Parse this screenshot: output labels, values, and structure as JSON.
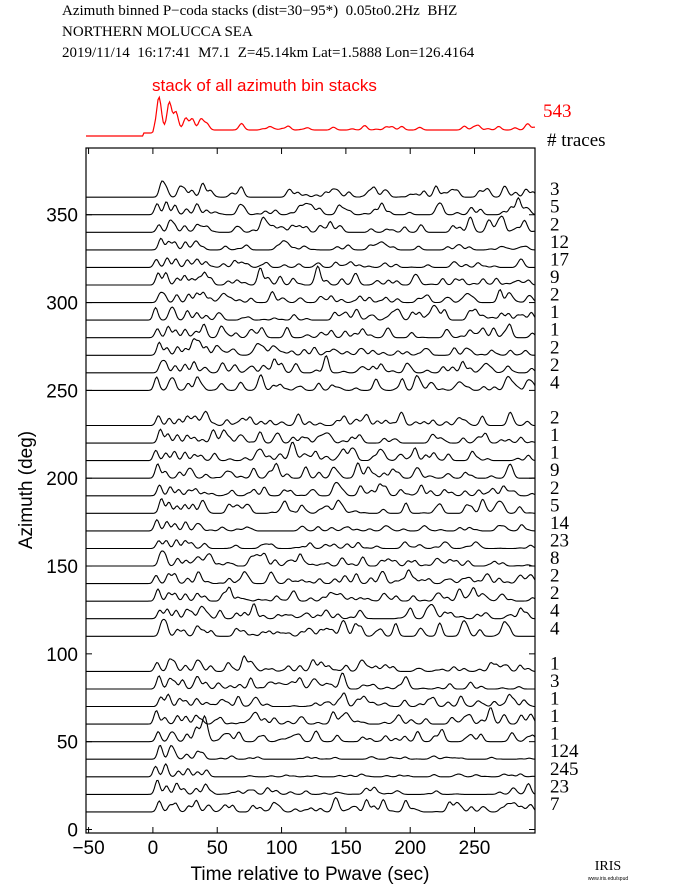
{
  "header": {
    "line1": "Azimuth binned P−coda stacks (dist=30−95*)  0.05to0.2Hz  BHZ",
    "line2": "NORTHERN MOLUCCA SEA",
    "line3": "2019/11/14  16:17:41  M7.1  Z=45.14km Lat=1.5888 Lon=126.4164"
  },
  "stack": {
    "label": "stack of all azimuth bin stacks",
    "count": "543",
    "color": "#ff0000"
  },
  "traces_label": "# traces",
  "logo": {
    "text": "IRIS",
    "url_text": "www.iris.edu/spud"
  },
  "chart_data": {
    "type": "line",
    "title": "Azimuth binned P-coda stacks",
    "xlabel": "Time relative to Pwave (sec)",
    "ylabel": "Azimuth (deg)",
    "xlim": [
      -52,
      297
    ],
    "ylim": [
      -2,
      388
    ],
    "xticks": [
      -50,
      0,
      50,
      100,
      150,
      200,
      250
    ],
    "xtick_labels": [
      "−50",
      "0",
      "50",
      "100",
      "150",
      "200",
      "250"
    ],
    "yticks": [
      0,
      50,
      100,
      150,
      200,
      250,
      300,
      350
    ],
    "ytick_labels": [
      "0",
      "50",
      "100",
      "150",
      "200",
      "250",
      "300",
      "350"
    ],
    "grid": false,
    "series": [
      {
        "azimuth": 360,
        "count": "3"
      },
      {
        "azimuth": 350,
        "count": "5"
      },
      {
        "azimuth": 340,
        "count": "2"
      },
      {
        "azimuth": 330,
        "count": "12"
      },
      {
        "azimuth": 320,
        "count": "17"
      },
      {
        "azimuth": 310,
        "count": "9"
      },
      {
        "azimuth": 300,
        "count": "2"
      },
      {
        "azimuth": 290,
        "count": "1"
      },
      {
        "azimuth": 280,
        "count": "1"
      },
      {
        "azimuth": 270,
        "count": "2"
      },
      {
        "azimuth": 260,
        "count": "2"
      },
      {
        "azimuth": 250,
        "count": "4"
      },
      {
        "azimuth": 230,
        "count": "2"
      },
      {
        "azimuth": 220,
        "count": "1"
      },
      {
        "azimuth": 210,
        "count": "1"
      },
      {
        "azimuth": 200,
        "count": "9"
      },
      {
        "azimuth": 190,
        "count": "2"
      },
      {
        "azimuth": 180,
        "count": "5"
      },
      {
        "azimuth": 170,
        "count": "14"
      },
      {
        "azimuth": 160,
        "count": "23"
      },
      {
        "azimuth": 150,
        "count": "8"
      },
      {
        "azimuth": 140,
        "count": "2"
      },
      {
        "azimuth": 130,
        "count": "2"
      },
      {
        "azimuth": 120,
        "count": "4"
      },
      {
        "azimuth": 110,
        "count": "4"
      },
      {
        "azimuth": 90,
        "count": "1"
      },
      {
        "azimuth": 80,
        "count": "3"
      },
      {
        "azimuth": 70,
        "count": "1"
      },
      {
        "azimuth": 60,
        "count": "1"
      },
      {
        "azimuth": 50,
        "count": "1"
      },
      {
        "azimuth": 40,
        "count": "124"
      },
      {
        "azimuth": 30,
        "count": "245"
      },
      {
        "azimuth": 20,
        "count": "23"
      },
      {
        "azimuth": 10,
        "count": "7"
      }
    ]
  }
}
